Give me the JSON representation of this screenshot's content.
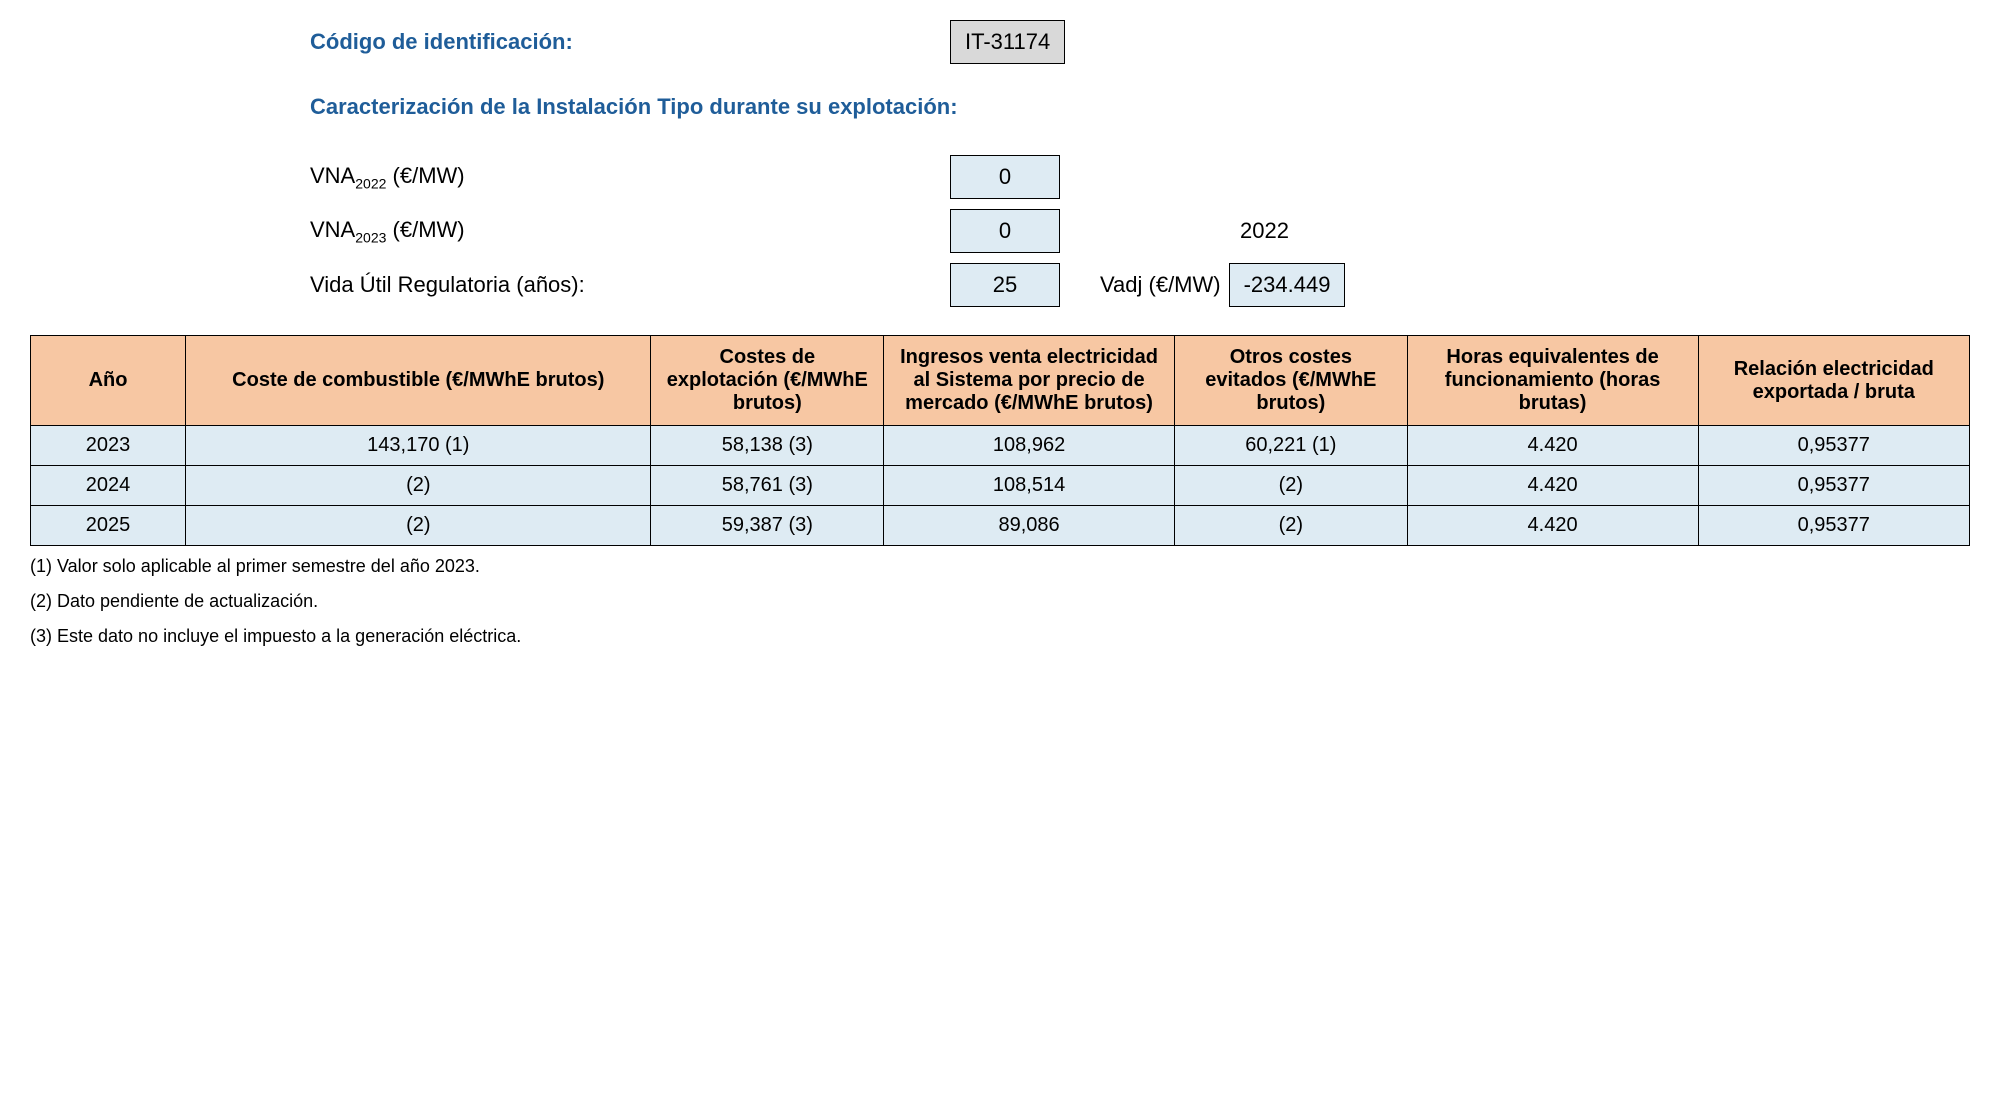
{
  "header": {
    "id_label": "Código de identificación:",
    "id_value": "IT-31174",
    "section_title": "Caracterización de la Instalación Tipo durante su explotación:",
    "vna2022_label_prefix": "VNA",
    "vna2022_label_sub": "2022",
    "vna2022_label_suffix": " (€/MW)",
    "vna2022_value": "0",
    "vna2023_label_prefix": "VNA",
    "vna2023_label_sub": "2023",
    "vna2023_label_suffix": " (€/MW)",
    "vna2023_value": "0",
    "vna2023_year": "2022",
    "vida_label": "Vida Útil Regulatoria (años):",
    "vida_value": "25",
    "vadj_label": "Vadj (€/MW)",
    "vadj_value": "-234.449"
  },
  "table": {
    "columns": [
      "Año",
      "Coste de combustible (€/MWhE brutos)",
      "Costes de explotación (€/MWhE brutos)",
      "Ingresos venta electricidad al Sistema por precio de mercado (€/MWhE brutos)",
      "Otros costes evitados (€/MWhE brutos)",
      "Horas equivalentes de funcionamiento (horas brutas)",
      "Relación electricidad exportada / bruta"
    ],
    "rows": [
      [
        "2023",
        "143,170 (1)",
        "58,138 (3)",
        "108,962",
        "60,221 (1)",
        "4.420",
        "0,95377"
      ],
      [
        "2024",
        "(2)",
        "58,761 (3)",
        "108,514",
        "(2)",
        "4.420",
        "0,95377"
      ],
      [
        "2025",
        "(2)",
        "59,387 (3)",
        "89,086",
        "(2)",
        "4.420",
        "0,95377"
      ]
    ],
    "header_bg": "#f7c7a3",
    "cell_bg": "#deebf3",
    "border_color": "#000000"
  },
  "footnotes": [
    "(1) Valor solo aplicable al primer semestre del año 2023.",
    "(2) Dato pendiente de actualización.",
    "(3) Este dato no incluye el impuesto a la generación eléctrica."
  ],
  "colors": {
    "heading_blue": "#1f5d99",
    "box_gray": "#d9d9d9",
    "box_blue": "#deebf3",
    "table_header": "#f7c7a3"
  }
}
